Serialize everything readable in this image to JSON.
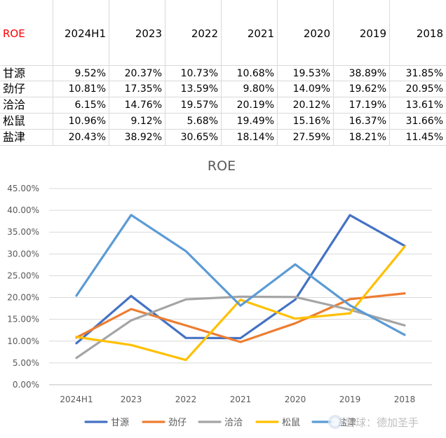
{
  "table": {
    "corner_label": "ROE",
    "columns": [
      "2024H1",
      "2023",
      "2022",
      "2021",
      "2020",
      "2019",
      "2018"
    ],
    "rows": [
      {
        "name": "甘源",
        "values": [
          "9.52%",
          "20.37%",
          "10.73%",
          "10.68%",
          "19.53%",
          "38.89%",
          "31.85%"
        ]
      },
      {
        "name": "劲仔",
        "values": [
          "10.81%",
          "17.35%",
          "13.59%",
          "9.80%",
          "14.09%",
          "19.62%",
          "20.95%"
        ]
      },
      {
        "name": "洽洽",
        "values": [
          "6.15%",
          "14.76%",
          "19.57%",
          "20.19%",
          "20.12%",
          "17.19%",
          "13.61%"
        ]
      },
      {
        "name": "松鼠",
        "values": [
          "10.96%",
          "9.12%",
          "5.68%",
          "19.49%",
          "15.16%",
          "16.37%",
          "31.66%"
        ]
      },
      {
        "name": "盐津",
        "values": [
          "20.43%",
          "38.92%",
          "30.65%",
          "18.14%",
          "27.59%",
          "18.21%",
          "11.45%"
        ]
      }
    ]
  },
  "chart_data": {
    "type": "line",
    "title": "ROE",
    "categories": [
      "2024H1",
      "2023",
      "2022",
      "2021",
      "2020",
      "2019",
      "2018"
    ],
    "ylim": [
      0,
      45
    ],
    "yticks": [
      "0.00%",
      "5.00%",
      "10.00%",
      "15.00%",
      "20.00%",
      "25.00%",
      "30.00%",
      "35.00%",
      "40.00%",
      "45.00%"
    ],
    "grid": true,
    "legend": "bottom",
    "series": [
      {
        "name": "甘源",
        "color": "#4472c4",
        "values": [
          9.52,
          20.37,
          10.73,
          10.68,
          19.53,
          38.89,
          31.85
        ]
      },
      {
        "name": "劲仔",
        "color": "#ed7d31",
        "values": [
          10.81,
          17.35,
          13.59,
          9.8,
          14.09,
          19.62,
          20.95
        ]
      },
      {
        "name": "洽洽",
        "color": "#a5a5a5",
        "values": [
          6.15,
          14.76,
          19.57,
          20.19,
          20.12,
          17.19,
          13.61
        ]
      },
      {
        "name": "松鼠",
        "color": "#ffc000",
        "values": [
          10.96,
          9.12,
          5.68,
          19.49,
          15.16,
          16.37,
          31.66
        ]
      },
      {
        "name": "盐津",
        "color": "#5b9bd5",
        "values": [
          20.43,
          38.92,
          30.65,
          18.14,
          27.59,
          18.21,
          11.45
        ]
      }
    ]
  },
  "watermark": {
    "icon": "snowball-logo-icon",
    "text": "雪球：德加圣手"
  }
}
